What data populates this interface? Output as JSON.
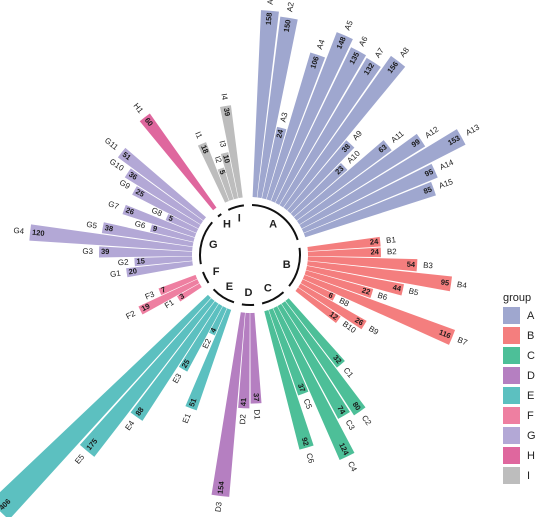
{
  "chart_data": {
    "type": "bar",
    "coord": "polar",
    "radial_scale": "sqrt",
    "legend_title": "group",
    "legend": "right",
    "series": [
      {
        "name": "A",
        "color": "#9fa7cf",
        "categories": [
          "A1",
          "A2",
          "A3",
          "A4",
          "A5",
          "A6",
          "A7",
          "A8",
          "A9",
          "A10",
          "A11",
          "A12",
          "A13",
          "A14",
          "A15"
        ],
        "values": [
          158,
          150,
          24,
          106,
          148,
          135,
          132,
          156,
          38,
          23,
          63,
          99,
          153,
          95,
          85
        ]
      },
      {
        "name": "B",
        "color": "#f47e7e",
        "categories": [
          "B1",
          "B2",
          "B3",
          "B4",
          "B5",
          "B6",
          "B7",
          "B8",
          "B9",
          "B10"
        ],
        "values": [
          24,
          24,
          54,
          95,
          44,
          22,
          116,
          6,
          26,
          12
        ]
      },
      {
        "name": "C",
        "color": "#4dbf98",
        "categories": [
          "C1",
          "C2",
          "C3",
          "C4",
          "C5",
          "C6"
        ],
        "values": [
          32,
          80,
          74,
          124,
          37,
          92
        ]
      },
      {
        "name": "D",
        "color": "#b57fc1",
        "categories": [
          "D1",
          "D2",
          "D3"
        ],
        "values": [
          37,
          41,
          154
        ]
      },
      {
        "name": "E",
        "color": "#5cc0c0",
        "categories": [
          "E1",
          "E2",
          "E3",
          "E4",
          "E5",
          "E6"
        ],
        "values": [
          51,
          4,
          25,
          88,
          175,
          406
        ]
      },
      {
        "name": "F",
        "color": "#ee7fa1",
        "categories": [
          "F1",
          "F2",
          "F3"
        ],
        "values": [
          3,
          19,
          7
        ]
      },
      {
        "name": "G",
        "color": "#b3a8d6",
        "categories": [
          "G1",
          "G2",
          "G3",
          "G4",
          "G5",
          "G6",
          "G7",
          "G8",
          "G9",
          "G10",
          "G11"
        ],
        "values": [
          20,
          15,
          39,
          120,
          38,
          9,
          26,
          5,
          25,
          36,
          51
        ]
      },
      {
        "name": "H",
        "color": "#df679e",
        "categories": [
          "H1"
        ],
        "values": [
          60
        ]
      },
      {
        "name": "I",
        "color": "#bdbdbd",
        "categories": [
          "I1",
          "I2",
          "I3",
          "I4"
        ],
        "values": [
          18,
          5,
          10,
          39
        ]
      }
    ]
  }
}
